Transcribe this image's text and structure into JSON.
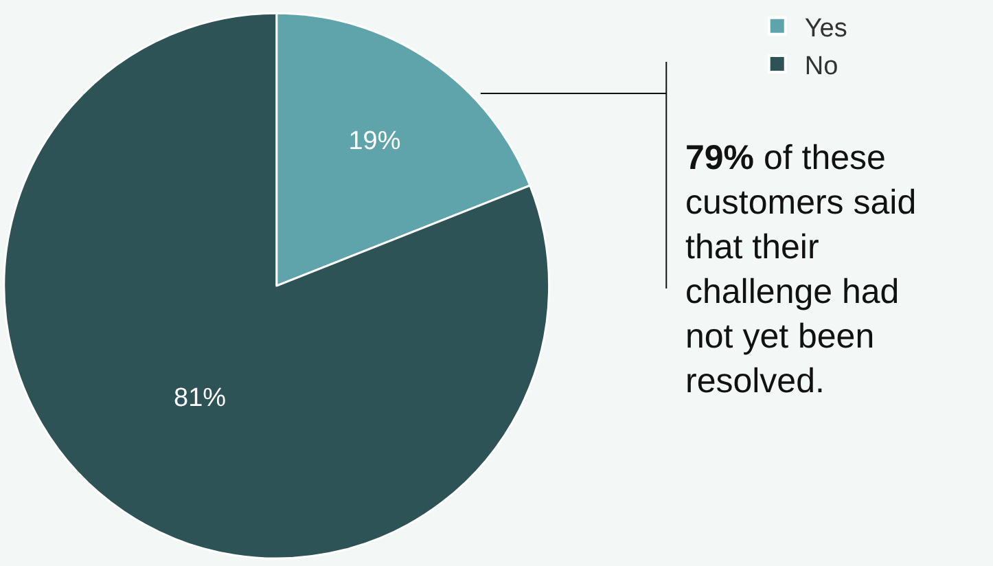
{
  "chart_data": {
    "type": "pie",
    "categories": [
      "Yes",
      "No"
    ],
    "values": [
      19,
      81
    ],
    "colors": [
      "#5fa4aa",
      "#2e5356"
    ],
    "value_labels": [
      "19%",
      "81%"
    ],
    "legend": "top right",
    "annotations": [
      "79% of these customers said that their challenge had not yet been resolved."
    ]
  }
}
